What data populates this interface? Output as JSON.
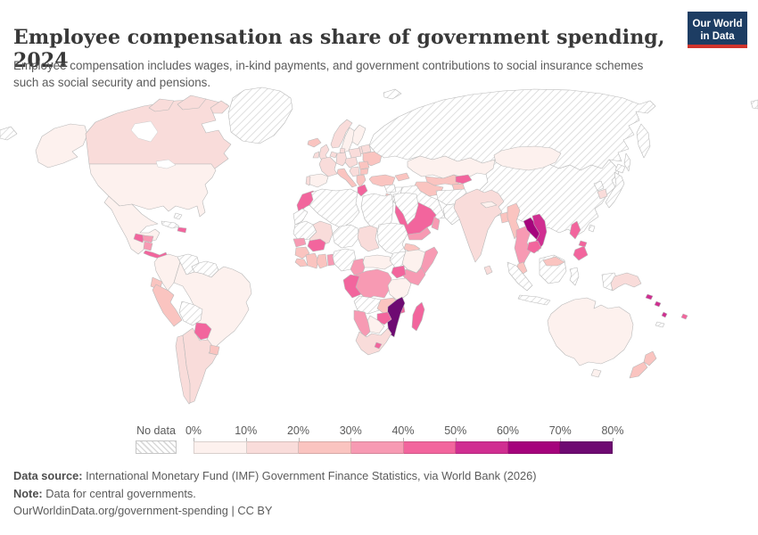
{
  "header": {
    "title": "Employee compensation as share of government spending, 2024",
    "subtitle": "Employee compensation includes wages, in-kind payments, and government contributions to social insurance schemes such as social security and pensions.",
    "logo_line1": "Our World",
    "logo_line2": "in Data"
  },
  "legend": {
    "no_data_label": "No data",
    "ticks": [
      "0%",
      "10%",
      "20%",
      "30%",
      "40%",
      "50%",
      "60%",
      "70%",
      "80%"
    ]
  },
  "footer": {
    "source_label": "Data source:",
    "source_text": " International Monetary Fund (IMF) Government Finance Statistics, via World Bank (2026)",
    "note_label": "Note:",
    "note_text": " Data for central governments.",
    "credit": "OurWorldinData.org/government-spending | CC BY"
  },
  "colors": {
    "brand_navy": "#1d3d63",
    "brand_red": "#d0342c",
    "country_border": "#b9b9b9",
    "hatch_line": "#d9d9d9"
  },
  "chart_data": {
    "type": "choropleth",
    "title": "Employee compensation as share of government spending, 2024",
    "unit": "share of government spending (%)",
    "bin_edges": [
      0,
      10,
      20,
      30,
      40,
      50,
      60,
      70,
      80
    ],
    "bins": [
      {
        "label": "0-10%",
        "color": "#fdf1ee"
      },
      {
        "label": "10-20%",
        "color": "#f9dcda"
      },
      {
        "label": "20-30%",
        "color": "#fac4c0"
      },
      {
        "label": "30-40%",
        "color": "#f79ab3"
      },
      {
        "label": "40-50%",
        "color": "#f2659d"
      },
      {
        "label": "50-60%",
        "color": "#d02e91"
      },
      {
        "label": "60-70%",
        "color": "#a5037c"
      },
      {
        "label": "70-80%",
        "color": "#6e0a72"
      }
    ],
    "no_data": {
      "label": "No data",
      "pattern": "diagonal-hatch"
    },
    "entity_bins": {
      "United States": 0,
      "Canada": 1,
      "Mexico": 0,
      "Greenland": "nd",
      "Guatemala": 4,
      "Honduras": 3,
      "Nicaragua": 3,
      "Costa Rica and Panama": 4,
      "Cuba": "nd",
      "Bahamas": "nd",
      "Dominican Republic": 4,
      "Colombia": 0,
      "Venezuela": "nd",
      "Guyana": "nd",
      "Ecuador": 2,
      "Peru": 2,
      "Brazil": 0,
      "Bolivia": "nd",
      "Paraguay": 4,
      "Uruguay": 2,
      "Argentina": 1,
      "Chile": 1,
      "Iceland": 2,
      "Norway": 1,
      "Sweden": 0,
      "Finland": 0,
      "United Kingdom": 1,
      "Ireland": 1,
      "Denmark": 1,
      "Germany": 1,
      "Netherlands": 1,
      "France": 1,
      "Spain": 0,
      "Portugal": 1,
      "Italy": 2,
      "Central Europe": 1,
      "Poland": 1,
      "Belarus": 1,
      "Baltics": 1,
      "Ukraine": 2,
      "Romania": 2,
      "Bulgaria": 2,
      "Balkans": 1,
      "Greece": 2,
      "Turkey": 2,
      "Russia": "nd",
      "Georgia": 2,
      "Kazakhstan": 0,
      "Uzbekistan": 2,
      "Turkmenistan": 2,
      "Kyrgyzstan": 4,
      "Tajikistan": 2,
      "Afghanistan": "nd",
      "Pakistan": "nd",
      "Iran": "nd",
      "Iraq": "nd",
      "Syria": "nd",
      "Israel": 2,
      "Jordan": "nd",
      "Saudi Arabia": 4,
      "Yemen": 3,
      "Oman": 3,
      "Morocco": 4,
      "Western Sahara": "nd",
      "Algeria": "nd",
      "Tunisia": 4,
      "Libya": "nd",
      "Egypt": "nd",
      "Mauritania": "nd",
      "Mali": 1,
      "Burkina Faso": 4,
      "Niger": "nd",
      "Chad": 1,
      "Sudan": "nd",
      "Eritrea": 2,
      "Senegal": 3,
      "Guinea": 2,
      "Sierra Leone": 2,
      "Cote d'Ivoire": 2,
      "Ghana": 2,
      "Benin": 3,
      "Nigeria": "nd",
      "Cameroon": 3,
      "Central African Republic": 0,
      "South Sudan": "nd",
      "Ethiopia": 0,
      "Somalia": 3,
      "Kenya": 3,
      "Uganda": 4,
      "DR Congo": 3,
      "Congo": 4,
      "Tanzania": 0,
      "Angola": "nd",
      "Zambia": 2,
      "Malawi": 4,
      "Mozambique": 7,
      "Zimbabwe": 4,
      "Botswana": 0,
      "Namibia": 3,
      "South Africa": 1,
      "Lesotho": 4,
      "Madagascar": 4,
      "India": 1,
      "Nepal": 0,
      "Bangladesh": 2,
      "Sri Lanka": 1,
      "Myanmar": 2,
      "Thailand": 3,
      "Laos": 6,
      "Vietnam": 5,
      "Cambodia": 4,
      "Malaysia": 2,
      "Indonesia": "nd",
      "Philippines": 4,
      "China": "nd",
      "Mongolia": 0,
      "Japan": "nd",
      "North Korea": "nd",
      "South Korea": 1,
      "Taiwan": "nd",
      "Papua New Guinea": 1,
      "Australia": 0,
      "New Zealand": 2,
      "Solomon Islands": 5,
      "Vanuatu": 5,
      "Fiji": 4,
      "New Caledonia": "nd",
      "Svalbard": "nd"
    }
  }
}
